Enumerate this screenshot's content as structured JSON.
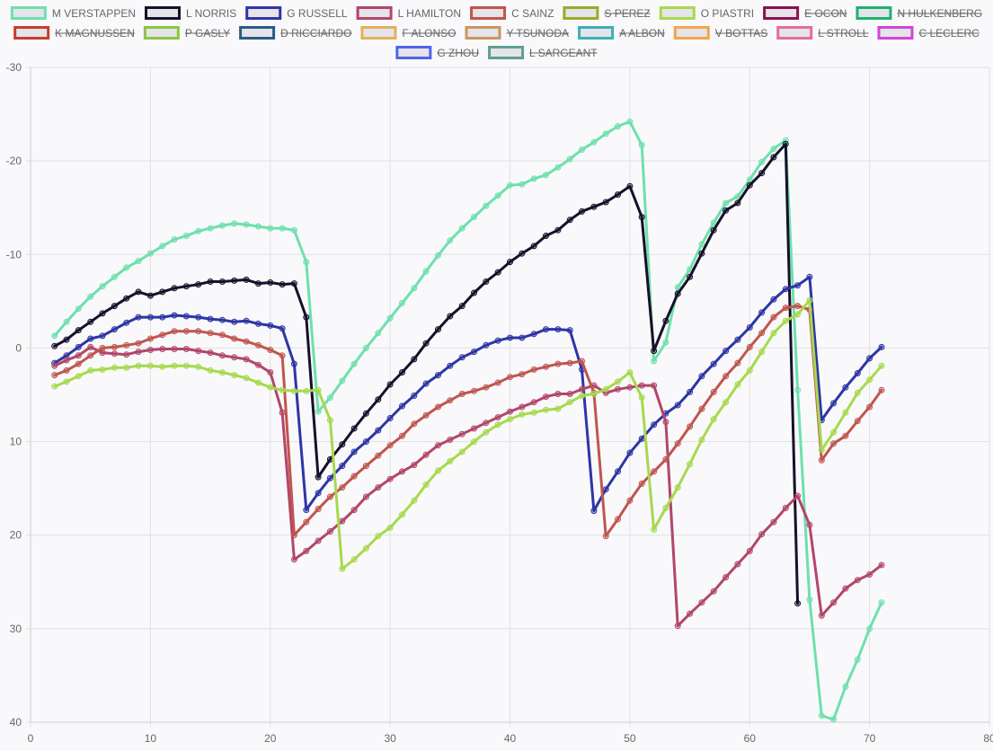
{
  "chart_data": {
    "type": "line",
    "title": "",
    "xlabel": "",
    "ylabel": "",
    "xlim": [
      0,
      80
    ],
    "ylim": [
      -30,
      40
    ],
    "y_reversed": true,
    "x_ticks": [
      0,
      10,
      20,
      30,
      40,
      50,
      60,
      70,
      80
    ],
    "y_ticks": [
      -30,
      -20,
      -10,
      0,
      10,
      20,
      30,
      40
    ],
    "grid": true,
    "legend_position": "top",
    "series": [
      {
        "name": "M VERSTAPPEN",
        "color": "#6ee0ac",
        "hidden": false,
        "x": [
          2,
          3,
          4,
          5,
          6,
          7,
          8,
          9,
          10,
          11,
          12,
          13,
          14,
          15,
          16,
          17,
          18,
          19,
          20,
          21,
          22,
          23,
          24,
          25,
          26,
          27,
          28,
          29,
          30,
          31,
          32,
          33,
          34,
          35,
          36,
          37,
          38,
          39,
          40,
          41,
          42,
          43,
          44,
          45,
          46,
          47,
          48,
          49,
          50,
          51,
          52,
          53,
          54,
          55,
          56,
          57,
          58,
          59,
          60,
          61,
          62,
          63,
          64,
          65,
          66,
          67,
          68,
          69,
          70,
          71
        ],
        "y": [
          -1.3,
          -2.8,
          -4.2,
          -5.5,
          -6.6,
          -7.6,
          -8.6,
          -9.3,
          -10.1,
          -10.9,
          -11.6,
          -12.0,
          -12.5,
          -12.8,
          -13.1,
          -13.3,
          -13.2,
          -13.0,
          -12.8,
          -12.8,
          -12.6,
          -9.2,
          6.8,
          5.3,
          3.5,
          1.7,
          0.0,
          -1.6,
          -3.2,
          -4.8,
          -6.4,
          -8.2,
          -9.9,
          -11.5,
          -12.8,
          -14.0,
          -15.2,
          -16.3,
          -17.4,
          -17.5,
          -18.1,
          -18.5,
          -19.3,
          -20.2,
          -21.2,
          -22.0,
          -22.9,
          -23.7,
          -24.2,
          -21.7,
          1.4,
          -0.6,
          -6.5,
          -8.4,
          -11.1,
          -13.4,
          -15.5,
          -16.2,
          -18.0,
          -19.9,
          -21.3,
          -22.2,
          4.5,
          26.9,
          39.3,
          39.7,
          36.2,
          33.3,
          30.0,
          27.2
        ]
      },
      {
        "name": "L NORRIS",
        "color": "#16102a",
        "hidden": false,
        "x": [
          2,
          3,
          4,
          5,
          6,
          7,
          8,
          9,
          10,
          11,
          12,
          13,
          14,
          15,
          16,
          17,
          18,
          19,
          20,
          21,
          22,
          23,
          24,
          25,
          26,
          27,
          28,
          29,
          30,
          31,
          32,
          33,
          34,
          35,
          36,
          37,
          38,
          39,
          40,
          41,
          42,
          43,
          44,
          45,
          46,
          47,
          48,
          49,
          50,
          51,
          52,
          53,
          54,
          55,
          56,
          57,
          58,
          59,
          60,
          61,
          62,
          63,
          64
        ],
        "y": [
          -0.2,
          -0.9,
          -1.9,
          -2.8,
          -3.7,
          -4.5,
          -5.3,
          -6.0,
          -5.6,
          -6.0,
          -6.4,
          -6.6,
          -6.8,
          -7.1,
          -7.1,
          -7.2,
          -7.3,
          -6.9,
          -7.0,
          -6.8,
          -6.9,
          -3.3,
          13.8,
          11.9,
          10.3,
          8.6,
          7.0,
          5.5,
          3.9,
          2.6,
          1.2,
          -0.5,
          -2.0,
          -3.4,
          -4.5,
          -5.9,
          -7.1,
          -8.1,
          -9.2,
          -10.1,
          -10.9,
          -12.0,
          -12.6,
          -13.7,
          -14.6,
          -15.1,
          -15.6,
          -16.4,
          -17.3,
          -14.0,
          0.3,
          -2.9,
          -5.8,
          -7.6,
          -10.1,
          -12.6,
          -14.7,
          -15.5,
          -17.4,
          -18.7,
          -20.4,
          -21.8,
          27.3
        ]
      },
      {
        "name": "G RUSSELL",
        "color": "#2e35a5",
        "hidden": false,
        "x": [
          2,
          3,
          4,
          5,
          6,
          7,
          8,
          9,
          10,
          11,
          12,
          13,
          14,
          15,
          16,
          17,
          18,
          19,
          20,
          21,
          22,
          23,
          24,
          25,
          26,
          27,
          28,
          29,
          30,
          31,
          32,
          33,
          34,
          35,
          36,
          37,
          38,
          39,
          40,
          41,
          42,
          43,
          44,
          45,
          46,
          47,
          48,
          49,
          50,
          51,
          52,
          53,
          54,
          55,
          56,
          57,
          58,
          59,
          60,
          61,
          62,
          63,
          64,
          65,
          66,
          67,
          68,
          69,
          70,
          71
        ],
        "y": [
          1.6,
          0.8,
          -0.1,
          -1.0,
          -1.3,
          -2.0,
          -2.7,
          -3.3,
          -3.3,
          -3.3,
          -3.5,
          -3.4,
          -3.3,
          -3.1,
          -3.0,
          -2.8,
          -2.9,
          -2.6,
          -2.4,
          -2.1,
          1.7,
          17.3,
          15.5,
          13.9,
          12.6,
          11.1,
          10.0,
          8.8,
          7.5,
          6.2,
          5.1,
          3.8,
          2.9,
          1.9,
          1.0,
          0.4,
          -0.3,
          -0.8,
          -1.1,
          -1.1,
          -1.5,
          -2.0,
          -2.0,
          -1.9,
          2.3,
          17.4,
          15.1,
          13.2,
          11.2,
          9.7,
          8.2,
          7.0,
          6.1,
          4.7,
          3.0,
          1.7,
          0.3,
          -0.9,
          -2.2,
          -3.8,
          -5.2,
          -6.3,
          -6.7,
          -7.6,
          7.7,
          5.9,
          4.2,
          2.7,
          1.1,
          -0.1
        ]
      },
      {
        "name": "L HAMILTON",
        "color": "#b2466a",
        "hidden": false,
        "x": [
          2,
          3,
          4,
          5,
          6,
          7,
          8,
          9,
          10,
          11,
          12,
          13,
          14,
          15,
          16,
          17,
          18,
          19,
          20,
          21,
          22,
          23,
          24,
          25,
          26,
          27,
          28,
          29,
          30,
          31,
          32,
          33,
          34,
          35,
          36,
          37,
          38,
          39,
          40,
          41,
          42,
          43,
          44,
          45,
          46,
          47,
          48,
          49,
          50,
          51,
          52,
          53,
          54,
          55,
          56,
          57,
          58,
          59,
          60,
          61,
          62,
          63,
          64,
          65,
          66,
          67,
          68,
          69,
          70,
          71
        ],
        "y": [
          1.9,
          1.3,
          0.8,
          -0.1,
          0.5,
          0.6,
          0.7,
          0.4,
          0.2,
          0.1,
          0.1,
          0.1,
          0.3,
          0.5,
          0.8,
          1.0,
          1.2,
          1.8,
          2.6,
          6.9,
          22.6,
          21.7,
          20.6,
          19.6,
          18.5,
          17.3,
          15.9,
          14.9,
          14.0,
          13.2,
          12.5,
          11.4,
          10.4,
          9.8,
          9.2,
          8.6,
          8.0,
          7.4,
          6.8,
          6.3,
          5.8,
          5.2,
          4.9,
          4.9,
          4.4,
          4.0,
          4.8,
          4.4,
          4.2,
          4.0,
          4.0,
          7.9,
          29.7,
          28.4,
          27.2,
          26.0,
          24.5,
          23.1,
          21.7,
          19.9,
          18.6,
          17.1,
          15.8,
          18.9,
          28.6,
          27.2,
          25.7,
          24.8,
          24.2,
          23.2
        ]
      },
      {
        "name": "C SAINZ",
        "color": "#c0554f",
        "hidden": false,
        "x": [
          2,
          3,
          4,
          5,
          6,
          7,
          8,
          9,
          10,
          11,
          12,
          13,
          14,
          15,
          16,
          17,
          18,
          19,
          20,
          21,
          22,
          23,
          24,
          25,
          26,
          27,
          28,
          29,
          30,
          31,
          32,
          33,
          34,
          35,
          36,
          37,
          38,
          39,
          40,
          41,
          42,
          43,
          44,
          45,
          46,
          47,
          48,
          49,
          50,
          51,
          52,
          53,
          54,
          55,
          56,
          57,
          58,
          59,
          60,
          61,
          62,
          63,
          64,
          65,
          66,
          67,
          68,
          69,
          70,
          71
        ],
        "y": [
          2.9,
          2.4,
          1.7,
          0.8,
          0.0,
          -0.1,
          -0.3,
          -0.5,
          -1.0,
          -1.4,
          -1.8,
          -1.8,
          -1.8,
          -1.6,
          -1.4,
          -1.0,
          -0.7,
          -0.3,
          0.2,
          0.8,
          20.0,
          18.6,
          17.2,
          15.9,
          14.9,
          13.7,
          12.6,
          11.5,
          10.4,
          9.4,
          8.1,
          7.2,
          6.3,
          5.6,
          4.9,
          4.6,
          4.2,
          3.7,
          3.1,
          2.8,
          2.3,
          2.0,
          1.7,
          1.6,
          1.4,
          4.8,
          20.1,
          18.3,
          16.3,
          14.5,
          13.2,
          11.9,
          10.2,
          8.4,
          6.5,
          4.7,
          3.0,
          1.6,
          -0.1,
          -1.6,
          -3.3,
          -4.3,
          -4.5,
          -4.1,
          12.0,
          10.2,
          9.4,
          7.8,
          6.3,
          4.5
        ]
      },
      {
        "name": "S PEREZ",
        "color": "#9bab26",
        "hidden": true,
        "x": [],
        "y": []
      },
      {
        "name": "O PIASTRI",
        "color": "#a7d94e",
        "hidden": false,
        "x": [
          2,
          3,
          4,
          5,
          6,
          7,
          8,
          9,
          10,
          11,
          12,
          13,
          14,
          15,
          16,
          17,
          18,
          19,
          20,
          21,
          22,
          23,
          24,
          25,
          26,
          27,
          28,
          29,
          30,
          31,
          32,
          33,
          34,
          35,
          36,
          37,
          38,
          39,
          40,
          41,
          42,
          43,
          44,
          45,
          46,
          47,
          48,
          49,
          50,
          51,
          52,
          53,
          54,
          55,
          56,
          57,
          58,
          59,
          60,
          61,
          62,
          63,
          64,
          65,
          66,
          67,
          68,
          69,
          70,
          71
        ],
        "y": [
          4.1,
          3.6,
          3.0,
          2.4,
          2.3,
          2.1,
          2.1,
          1.9,
          1.9,
          2.0,
          1.9,
          1.9,
          2.0,
          2.4,
          2.6,
          2.9,
          3.2,
          3.7,
          4.2,
          4.5,
          4.6,
          4.6,
          4.5,
          7.7,
          23.6,
          22.6,
          21.4,
          20.1,
          19.2,
          17.8,
          16.3,
          14.6,
          13.1,
          12.1,
          11.1,
          10.0,
          9.0,
          8.2,
          7.6,
          7.1,
          6.9,
          6.6,
          6.5,
          5.8,
          5.1,
          4.9,
          4.4,
          3.6,
          2.6,
          5.3,
          19.4,
          17.1,
          14.9,
          12.4,
          9.8,
          7.6,
          5.8,
          3.9,
          2.4,
          0.4,
          -1.6,
          -2.9,
          -3.6,
          -5.1,
          10.9,
          9.0,
          6.9,
          4.8,
          3.4,
          1.9
        ]
      },
      {
        "name": "E OCON",
        "color": "#8c1050",
        "hidden": true,
        "x": [],
        "y": []
      },
      {
        "name": "N HULKENBERG",
        "color": "#1db36e",
        "hidden": true,
        "x": [],
        "y": []
      },
      {
        "name": "K MAGNUSSEN",
        "color": "#c83c2c",
        "hidden": true,
        "x": [],
        "y": []
      },
      {
        "name": "P GASLY",
        "color": "#8dc63f",
        "hidden": true,
        "x": [],
        "y": []
      },
      {
        "name": "D RICCIARDO",
        "color": "#2b5b84",
        "hidden": true,
        "x": [],
        "y": []
      },
      {
        "name": "F ALONSO",
        "color": "#dfb35a",
        "hidden": true,
        "x": [],
        "y": []
      },
      {
        "name": "Y TSUNODA",
        "color": "#c99762",
        "hidden": true,
        "x": [],
        "y": []
      },
      {
        "name": "A ALBON",
        "color": "#3eb0b5",
        "hidden": true,
        "x": [],
        "y": []
      },
      {
        "name": "V BOTTAS",
        "color": "#f4a44c",
        "hidden": true,
        "x": [],
        "y": []
      },
      {
        "name": "L STROLL",
        "color": "#e26e98",
        "hidden": true,
        "x": [],
        "y": []
      },
      {
        "name": "C LECLERC",
        "color": "#d443d6",
        "hidden": true,
        "x": [],
        "y": []
      },
      {
        "name": "G ZHOU",
        "color": "#4f64e8",
        "hidden": true,
        "x": [],
        "y": []
      },
      {
        "name": "L SARGEANT",
        "color": "#5f9f8f",
        "hidden": true,
        "x": [],
        "y": []
      }
    ]
  }
}
